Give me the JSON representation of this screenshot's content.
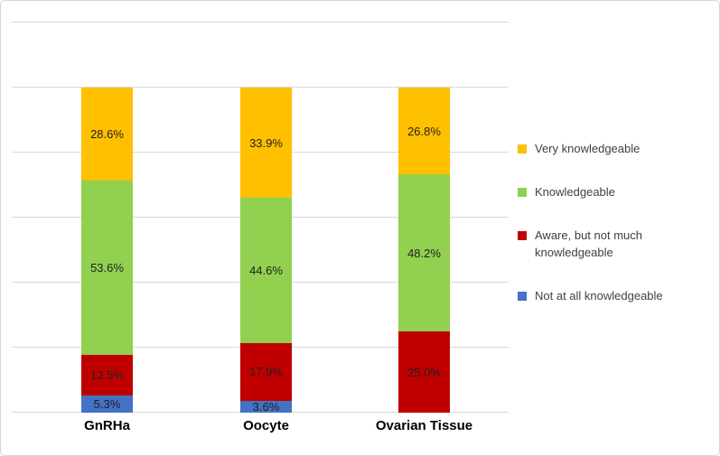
{
  "chart_data": {
    "type": "bar",
    "stacked": true,
    "percent_stacked": true,
    "title": "",
    "xlabel": "",
    "ylabel": "",
    "categories": [
      "GnRHa",
      "Oocyte",
      "Ovarian Tissue"
    ],
    "series": [
      {
        "name": "Not at all knowledgeable",
        "color": "#4472C4",
        "values": [
          5.3,
          3.6,
          0
        ]
      },
      {
        "name": "Aware, but not much knowledgeable",
        "color": "#C00000",
        "values": [
          12.5,
          17.9,
          25.0
        ]
      },
      {
        "name": "Knowledgeable",
        "color": "#92D050",
        "values": [
          53.6,
          44.6,
          48.2
        ]
      },
      {
        "name": "Very knowledgeable",
        "color": "#FFC000",
        "values": [
          28.6,
          33.9,
          26.8
        ]
      }
    ],
    "data_labels": {
      "format": "0.0%",
      "visible": true
    },
    "ylim": [
      0,
      120
    ],
    "gridline_step": 20,
    "grid": true,
    "legend_position": "right",
    "legend_order": [
      "Very knowledgeable",
      "Knowledgeable",
      "Aware, but not much knowledgeable",
      "Not at all knowledgeable"
    ]
  },
  "style_colors": {
    "gridline": "#d9d9d9",
    "border": "#d6d6d6",
    "data_label_text": "#1f1f1f",
    "legend_text": "#404040",
    "axis_label_text": "#000000"
  }
}
